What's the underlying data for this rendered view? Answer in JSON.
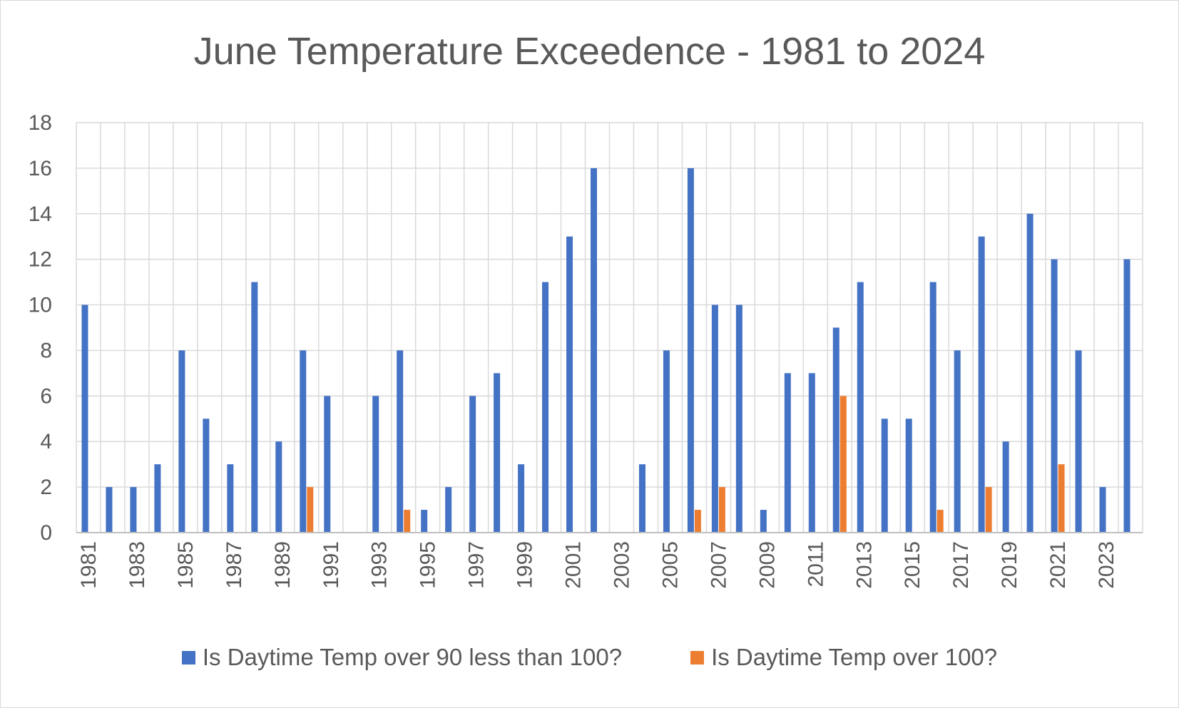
{
  "colors": {
    "series1": "#4472C4",
    "series2": "#ED7D31",
    "grid": "#d9d9d9",
    "text": "#595959"
  },
  "chart_data": {
    "type": "bar",
    "title": "June Temperature Exceedence - 1981 to 2024",
    "xlabel": "",
    "ylabel": "",
    "ylim": [
      0,
      18
    ],
    "yticks": [
      "0",
      "2",
      "4",
      "6",
      "8",
      "10",
      "12",
      "14",
      "16",
      "18"
    ],
    "categories": [
      "1981",
      "1982",
      "1983",
      "1984",
      "1985",
      "1986",
      "1987",
      "1988",
      "1989",
      "1990",
      "1991",
      "1992",
      "1993",
      "1994",
      "1995",
      "1996",
      "1997",
      "1998",
      "1999",
      "2000",
      "2001",
      "2002",
      "2003",
      "2004",
      "2005",
      "2006",
      "2007",
      "2008",
      "2009",
      "2010",
      "2011",
      "2012",
      "2013",
      "2014",
      "2015",
      "2016",
      "2017",
      "2018",
      "2019",
      "2020",
      "2021",
      "2022",
      "2023",
      "2024"
    ],
    "xtick_labels": [
      "1981",
      "",
      "1983",
      "",
      "1985",
      "",
      "1987",
      "",
      "1989",
      "",
      "1991",
      "",
      "1993",
      "",
      "1995",
      "",
      "1997",
      "",
      "1999",
      "",
      "2001",
      "",
      "2003",
      "",
      "2005",
      "",
      "2007",
      "",
      "2009",
      "",
      "2011",
      "",
      "2013",
      "",
      "2015",
      "",
      "2017",
      "",
      "2019",
      "",
      "2021",
      "",
      "2023",
      ""
    ],
    "series": [
      {
        "name": "Is Daytime Temp over 90 less than 100?",
        "values": [
          10,
          2,
          2,
          3,
          8,
          5,
          3,
          11,
          4,
          8,
          6,
          0,
          6,
          8,
          1,
          2,
          6,
          7,
          3,
          11,
          13,
          16,
          0,
          3,
          8,
          16,
          10,
          10,
          1,
          7,
          7,
          9,
          11,
          5,
          5,
          11,
          8,
          13,
          4,
          14,
          12,
          8,
          2,
          12
        ]
      },
      {
        "name": "Is Daytime Temp over 100?",
        "values": [
          0,
          0,
          0,
          0,
          0,
          0,
          0,
          0,
          0,
          2,
          0,
          0,
          0,
          1,
          0,
          0,
          0,
          0,
          0,
          0,
          0,
          0,
          0,
          0,
          0,
          1,
          2,
          0,
          0,
          0,
          0,
          6,
          0,
          0,
          0,
          1,
          0,
          2,
          0,
          0,
          3,
          0,
          0,
          0
        ]
      }
    ],
    "grid": true,
    "legend": "bottom"
  }
}
